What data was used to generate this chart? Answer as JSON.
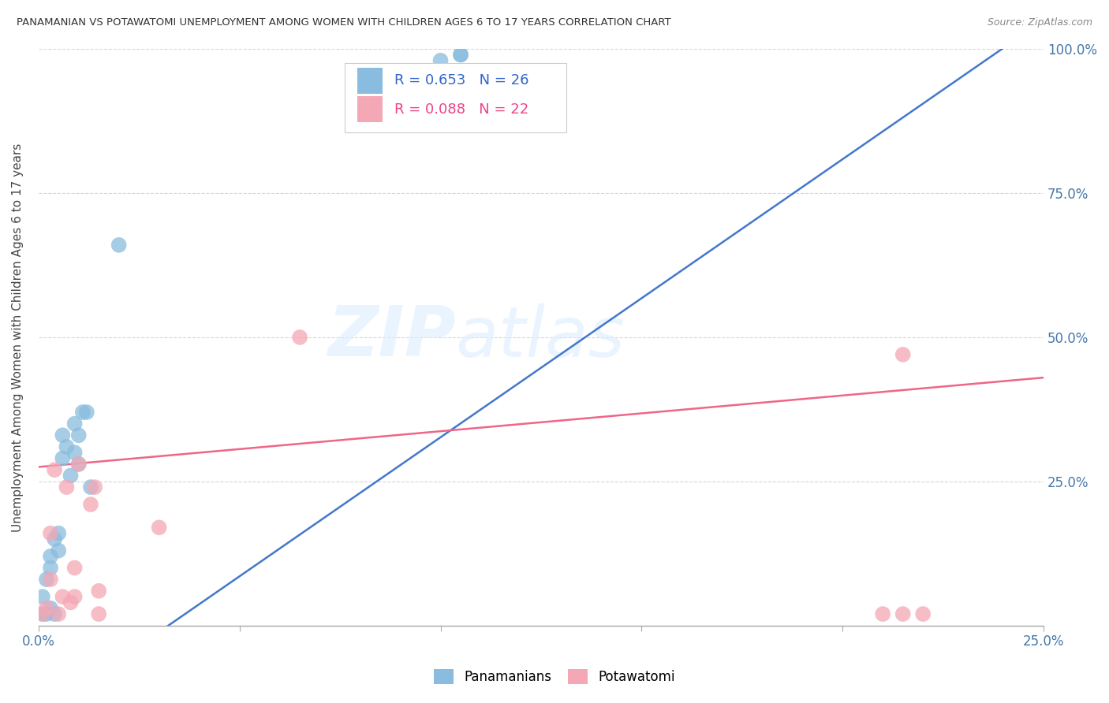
{
  "title": "PANAMANIAN VS POTAWATOMI UNEMPLOYMENT AMONG WOMEN WITH CHILDREN AGES 6 TO 17 YEARS CORRELATION CHART",
  "source": "Source: ZipAtlas.com",
  "ylabel": "Unemployment Among Women with Children Ages 6 to 17 years",
  "xlim": [
    0.0,
    0.25
  ],
  "ylim": [
    0.0,
    1.0
  ],
  "x_ticks": [
    0.0,
    0.05,
    0.1,
    0.15,
    0.2,
    0.25
  ],
  "x_tick_labels": [
    "0.0%",
    "",
    "",
    "",
    "",
    "25.0%"
  ],
  "y_ticks": [
    0.0,
    0.25,
    0.5,
    0.75,
    1.0
  ],
  "y_tick_labels": [
    "",
    "25.0%",
    "50.0%",
    "75.0%",
    "100.0%"
  ],
  "legend_r_blue": "R = 0.653",
  "legend_n_blue": "N = 26",
  "legend_r_pink": "R = 0.088",
  "legend_n_pink": "N = 22",
  "blue_color": "#89BCDE",
  "pink_color": "#F4A7B5",
  "blue_line_color": "#4477CC",
  "pink_line_color": "#EE6688",
  "watermark_zip": "ZIP",
  "watermark_atlas": "atlas",
  "blue_scatter_x": [
    0.001,
    0.001,
    0.002,
    0.002,
    0.003,
    0.003,
    0.003,
    0.004,
    0.004,
    0.005,
    0.005,
    0.006,
    0.006,
    0.007,
    0.008,
    0.009,
    0.009,
    0.01,
    0.01,
    0.011,
    0.012,
    0.013,
    0.02,
    0.1,
    0.105,
    0.105
  ],
  "blue_scatter_y": [
    0.02,
    0.05,
    0.02,
    0.08,
    0.03,
    0.1,
    0.12,
    0.02,
    0.15,
    0.13,
    0.16,
    0.29,
    0.33,
    0.31,
    0.26,
    0.3,
    0.35,
    0.28,
    0.33,
    0.37,
    0.37,
    0.24,
    0.66,
    0.98,
    0.99,
    0.99
  ],
  "pink_scatter_x": [
    0.001,
    0.002,
    0.003,
    0.003,
    0.004,
    0.005,
    0.006,
    0.007,
    0.008,
    0.009,
    0.009,
    0.01,
    0.013,
    0.014,
    0.015,
    0.015,
    0.03,
    0.065,
    0.21,
    0.215,
    0.215,
    0.22
  ],
  "pink_scatter_y": [
    0.02,
    0.03,
    0.08,
    0.16,
    0.27,
    0.02,
    0.05,
    0.24,
    0.04,
    0.05,
    0.1,
    0.28,
    0.21,
    0.24,
    0.02,
    0.06,
    0.17,
    0.5,
    0.02,
    0.02,
    0.47,
    0.02
  ],
  "blue_line_x": [
    -0.005,
    0.25
  ],
  "blue_line_y": [
    -0.18,
    1.05
  ],
  "pink_line_x": [
    0.0,
    0.25
  ],
  "pink_line_y": [
    0.275,
    0.43
  ],
  "background_color": "#FFFFFF",
  "grid_color": "#CCCCCC"
}
